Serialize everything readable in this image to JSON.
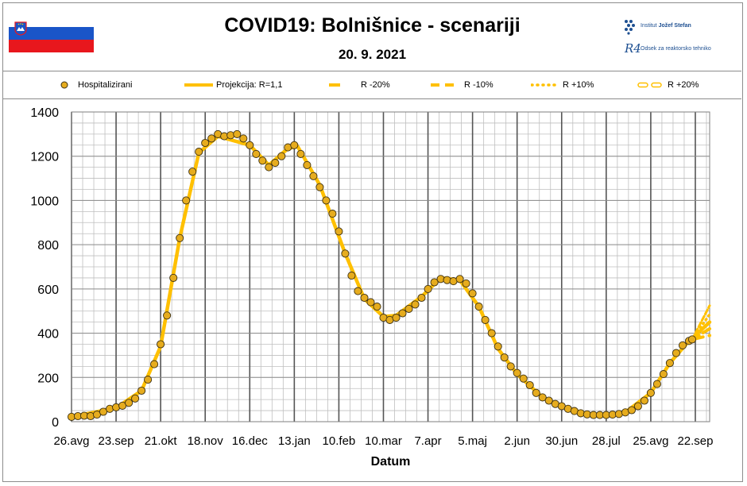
{
  "header": {
    "title": "COVID19: Bolnišnice - scenariji",
    "date": "20. 9. 2021",
    "logo_ijs_prefix": "Institut ",
    "logo_ijs_name": "Jožef Stefan",
    "logo_r4_mark": "R4",
    "logo_r4_text": "Odsek za reaktorsko tehniko"
  },
  "legend": [
    {
      "label": "Hospitalizirani",
      "style": "dot"
    },
    {
      "label": "Projekcija: R=1,1",
      "style": "solid"
    },
    {
      "label": "R -20%",
      "style": "dash-long"
    },
    {
      "label": "R -10%",
      "style": "dash"
    },
    {
      "label": "R +10%",
      "style": "dotted"
    },
    {
      "label": "R +20%",
      "style": "hollow-dash"
    }
  ],
  "colors": {
    "marker_fill": "#e6ac1e",
    "marker_edge": "#3c3014",
    "projection": "#ffc000",
    "grid_major": "#555555",
    "grid_minor": "#bfbfbf",
    "flag_blue": "#1a55c8",
    "flag_red": "#e8171d",
    "logo_blue": "#1d4f91"
  },
  "chart_data": {
    "type": "scatter",
    "title": "COVID19: Bolnišnice - scenariji",
    "subtitle": "20. 9. 2021",
    "xlabel": "Datum",
    "ylabel": "",
    "ylim": [
      0,
      1400
    ],
    "yticks": [
      0,
      200,
      400,
      600,
      800,
      1000,
      1200,
      1400
    ],
    "x_tick_labels": [
      "26.avg",
      "23.sep",
      "21.okt",
      "18.nov",
      "16.dec",
      "13.jan",
      "10.feb",
      "10.mar",
      "7.apr",
      "5.maj",
      "2.jun",
      "30.jun",
      "28.jul",
      "25.avg",
      "22.sep"
    ],
    "x_tick_dates": [
      "2020-08-26",
      "2020-09-23",
      "2020-10-21",
      "2020-11-18",
      "2020-12-16",
      "2021-01-13",
      "2021-02-10",
      "2021-03-10",
      "2021-04-07",
      "2021-05-05",
      "2021-06-02",
      "2021-06-30",
      "2021-07-28",
      "2021-08-25",
      "2021-09-22"
    ],
    "xlim": [
      "2020-08-26",
      "2021-10-01"
    ],
    "grid": true,
    "legend_position": "top",
    "series": [
      {
        "name": "Hospitalizirani",
        "kind": "markers",
        "points": [
          [
            "2020-08-26",
            22
          ],
          [
            "2020-08-30",
            25
          ],
          [
            "2020-09-03",
            27
          ],
          [
            "2020-09-07",
            25
          ],
          [
            "2020-09-11",
            32
          ],
          [
            "2020-09-15",
            45
          ],
          [
            "2020-09-19",
            58
          ],
          [
            "2020-09-23",
            65
          ],
          [
            "2020-09-27",
            72
          ],
          [
            "2020-10-01",
            85
          ],
          [
            "2020-10-05",
            105
          ],
          [
            "2020-10-09",
            140
          ],
          [
            "2020-10-13",
            190
          ],
          [
            "2020-10-17",
            260
          ],
          [
            "2020-10-21",
            350
          ],
          [
            "2020-10-25",
            480
          ],
          [
            "2020-10-29",
            650
          ],
          [
            "2020-11-02",
            830
          ],
          [
            "2020-11-06",
            1000
          ],
          [
            "2020-11-10",
            1130
          ],
          [
            "2020-11-14",
            1220
          ],
          [
            "2020-11-18",
            1260
          ],
          [
            "2020-11-22",
            1280
          ],
          [
            "2020-11-26",
            1300
          ],
          [
            "2020-11-30",
            1290
          ],
          [
            "2020-12-04",
            1295
          ],
          [
            "2020-12-08",
            1300
          ],
          [
            "2020-12-12",
            1280
          ],
          [
            "2020-12-16",
            1250
          ],
          [
            "2020-12-20",
            1210
          ],
          [
            "2020-12-24",
            1180
          ],
          [
            "2020-12-28",
            1150
          ],
          [
            "2021-01-01",
            1170
          ],
          [
            "2021-01-05",
            1200
          ],
          [
            "2021-01-09",
            1240
          ],
          [
            "2021-01-13",
            1250
          ],
          [
            "2021-01-17",
            1210
          ],
          [
            "2021-01-21",
            1160
          ],
          [
            "2021-01-25",
            1110
          ],
          [
            "2021-01-29",
            1060
          ],
          [
            "2021-02-02",
            1000
          ],
          [
            "2021-02-06",
            940
          ],
          [
            "2021-02-10",
            860
          ],
          [
            "2021-02-14",
            760
          ],
          [
            "2021-02-18",
            660
          ],
          [
            "2021-02-22",
            590
          ],
          [
            "2021-02-26",
            560
          ],
          [
            "2021-03-02",
            540
          ],
          [
            "2021-03-06",
            520
          ],
          [
            "2021-03-10",
            470
          ],
          [
            "2021-03-14",
            460
          ],
          [
            "2021-03-18",
            470
          ],
          [
            "2021-03-22",
            490
          ],
          [
            "2021-03-26",
            510
          ],
          [
            "2021-03-30",
            530
          ],
          [
            "2021-04-03",
            560
          ],
          [
            "2021-04-07",
            600
          ],
          [
            "2021-04-11",
            630
          ],
          [
            "2021-04-15",
            645
          ],
          [
            "2021-04-19",
            640
          ],
          [
            "2021-04-23",
            635
          ],
          [
            "2021-04-27",
            645
          ],
          [
            "2021-05-01",
            625
          ],
          [
            "2021-05-05",
            580
          ],
          [
            "2021-05-09",
            520
          ],
          [
            "2021-05-13",
            460
          ],
          [
            "2021-05-17",
            400
          ],
          [
            "2021-05-21",
            340
          ],
          [
            "2021-05-25",
            290
          ],
          [
            "2021-05-29",
            250
          ],
          [
            "2021-06-02",
            220
          ],
          [
            "2021-06-06",
            195
          ],
          [
            "2021-06-10",
            165
          ],
          [
            "2021-06-14",
            130
          ],
          [
            "2021-06-18",
            110
          ],
          [
            "2021-06-22",
            95
          ],
          [
            "2021-06-26",
            80
          ],
          [
            "2021-06-30",
            70
          ],
          [
            "2021-07-04",
            58
          ],
          [
            "2021-07-08",
            48
          ],
          [
            "2021-07-12",
            38
          ],
          [
            "2021-07-16",
            33
          ],
          [
            "2021-07-20",
            30
          ],
          [
            "2021-07-24",
            30
          ],
          [
            "2021-07-28",
            30
          ],
          [
            "2021-08-01",
            32
          ],
          [
            "2021-08-05",
            35
          ],
          [
            "2021-08-09",
            42
          ],
          [
            "2021-08-13",
            52
          ],
          [
            "2021-08-17",
            70
          ],
          [
            "2021-08-21",
            95
          ],
          [
            "2021-08-25",
            130
          ],
          [
            "2021-08-29",
            170
          ],
          [
            "2021-09-02",
            215
          ],
          [
            "2021-09-06",
            265
          ],
          [
            "2021-09-10",
            310
          ],
          [
            "2021-09-14",
            345
          ],
          [
            "2021-09-18",
            365
          ],
          [
            "2021-09-20",
            372
          ]
        ]
      },
      {
        "name": "Projekcija: R=1,1",
        "kind": "line",
        "points": [
          [
            "2020-08-26",
            22
          ],
          [
            "2020-09-23",
            62
          ],
          [
            "2020-10-09",
            140
          ],
          [
            "2020-10-21",
            340
          ],
          [
            "2020-11-02",
            830
          ],
          [
            "2020-11-14",
            1215
          ],
          [
            "2020-11-26",
            1290
          ],
          [
            "2020-12-16",
            1250
          ],
          [
            "2020-12-28",
            1160
          ],
          [
            "2021-01-09",
            1235
          ],
          [
            "2021-01-15",
            1245
          ],
          [
            "2021-01-29",
            1070
          ],
          [
            "2021-02-14",
            760
          ],
          [
            "2021-02-26",
            555
          ],
          [
            "2021-03-10",
            475
          ],
          [
            "2021-03-18",
            480
          ],
          [
            "2021-04-03",
            565
          ],
          [
            "2021-04-15",
            650
          ],
          [
            "2021-04-27",
            640
          ],
          [
            "2021-05-09",
            520
          ],
          [
            "2021-05-21",
            330
          ],
          [
            "2021-06-02",
            215
          ],
          [
            "2021-06-18",
            110
          ],
          [
            "2021-06-30",
            70
          ],
          [
            "2021-07-16",
            33
          ],
          [
            "2021-07-28",
            30
          ],
          [
            "2021-08-09",
            42
          ],
          [
            "2021-08-25",
            130
          ],
          [
            "2021-09-06",
            265
          ],
          [
            "2021-09-18",
            365
          ],
          [
            "2021-09-22",
            390
          ],
          [
            "2021-10-01",
            450
          ]
        ]
      },
      {
        "name": "R -20%",
        "kind": "line",
        "points": [
          [
            "2021-09-20",
            372
          ],
          [
            "2021-10-01",
            390
          ]
        ]
      },
      {
        "name": "R -10%",
        "kind": "line",
        "points": [
          [
            "2021-09-20",
            372
          ],
          [
            "2021-10-01",
            420
          ]
        ]
      },
      {
        "name": "R +10%",
        "kind": "line",
        "points": [
          [
            "2021-09-20",
            372
          ],
          [
            "2021-10-01",
            485
          ]
        ]
      },
      {
        "name": "R +20%",
        "kind": "line",
        "points": [
          [
            "2021-09-20",
            372
          ],
          [
            "2021-10-01",
            525
          ]
        ]
      }
    ]
  }
}
